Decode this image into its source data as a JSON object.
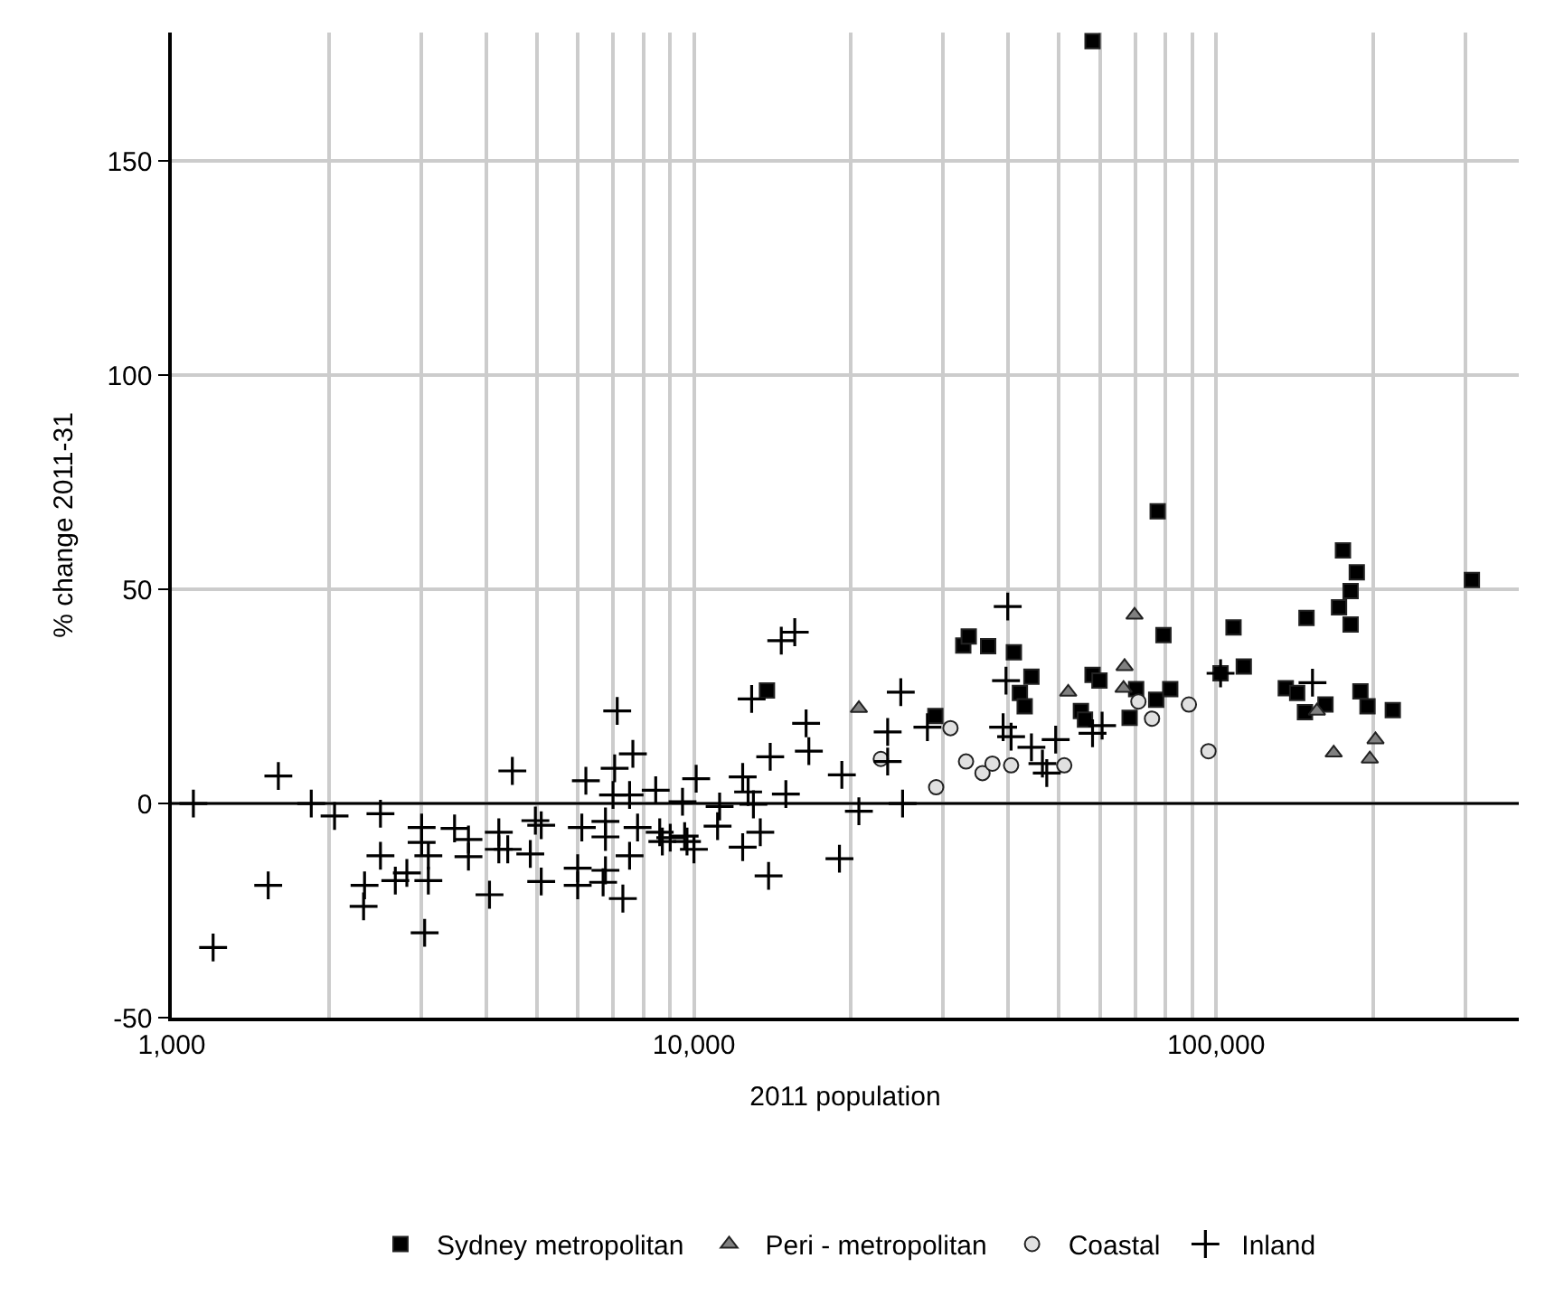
{
  "chart_data": {
    "type": "scatter",
    "xlabel": "2011 population",
    "ylabel": "% change 2011-31",
    "log": "x",
    "grid": true,
    "legend": "bottom",
    "xlim": [
      1000,
      380000
    ],
    "ylim": [
      -50,
      180
    ],
    "xticks": [
      {
        "value": 1000,
        "label": "1,000"
      },
      {
        "value": 2000,
        "label": null
      },
      {
        "value": 3000,
        "label": null
      },
      {
        "value": 4000,
        "label": null
      },
      {
        "value": 5000,
        "label": null
      },
      {
        "value": 6000,
        "label": null
      },
      {
        "value": 7000,
        "label": null
      },
      {
        "value": 8000,
        "label": null
      },
      {
        "value": 9000,
        "label": null
      },
      {
        "value": 10000,
        "label": "10,000"
      },
      {
        "value": 20000,
        "label": null
      },
      {
        "value": 30000,
        "label": null
      },
      {
        "value": 40000,
        "label": null
      },
      {
        "value": 50000,
        "label": null
      },
      {
        "value": 60000,
        "label": null
      },
      {
        "value": 70000,
        "label": null
      },
      {
        "value": 80000,
        "label": null
      },
      {
        "value": 90000,
        "label": null
      },
      {
        "value": 100000,
        "label": "100,000"
      },
      {
        "value": 200000,
        "label": null
      },
      {
        "value": 300000,
        "label": null
      }
    ],
    "yticks": [
      -50,
      0,
      50,
      100,
      150
    ],
    "ref_lines": [
      {
        "axis": "y",
        "value": 0,
        "color": "#000000"
      }
    ],
    "series": [
      {
        "name": "Sydney metropolitan",
        "color": "#000000",
        "marker": "square",
        "x": [
          58000,
          13800,
          29000,
          32800,
          33600,
          36600,
          41000,
          42100,
          43000,
          44300,
          58000,
          59800,
          55100,
          56100,
          68300,
          70300,
          77300,
          76800,
          79300,
          81700,
          102000,
          108000,
          113000,
          136000,
          143000,
          149000,
          148000,
          162000,
          175000,
          172000,
          186000,
          181000,
          181000,
          189000,
          195000,
          218000,
          309000
        ],
        "values": [
          178,
          26.4,
          20.4,
          36.9,
          39,
          36.7,
          35.3,
          25.8,
          22.7,
          29.6,
          30,
          28.7,
          21.6,
          19.6,
          20,
          26.7,
          68.2,
          24.2,
          39.3,
          26.7,
          30.4,
          41.1,
          32,
          26.9,
          25.8,
          43.3,
          21.3,
          23.1,
          59.1,
          45.8,
          54,
          49.6,
          41.8,
          26.2,
          22.7,
          21.8,
          52.2
        ]
      },
      {
        "name": "Peri - metropolitan",
        "color": "#808080",
        "marker": "triangle",
        "x": [
          20700,
          52100,
          66500,
          66800,
          69800,
          156000,
          168000,
          197000,
          202000
        ],
        "values": [
          22.2,
          26,
          26.9,
          32,
          44,
          21.6,
          11.8,
          10.4,
          14.9
        ]
      },
      {
        "name": "Coastal",
        "color": "#e0e0e0",
        "marker": "circle",
        "x": [
          22800,
          29100,
          31000,
          33200,
          35700,
          37300,
          40500,
          51200,
          71000,
          75400,
          88700,
          96700
        ],
        "values": [
          10.4,
          3.8,
          17.6,
          9.8,
          7.1,
          9.3,
          8.9,
          8.9,
          23.8,
          19.8,
          23.1,
          12.2
        ]
      },
      {
        "name": "Inland",
        "color": "#000000",
        "marker": "cross",
        "x": [
          1100,
          1200,
          1530,
          1600,
          1850,
          2050,
          2330,
          2340,
          2510,
          2510,
          2680,
          2820,
          3010,
          3050,
          3100,
          3100,
          3010,
          3480,
          3700,
          3700,
          4060,
          4230,
          4230,
          4490,
          4400,
          4860,
          4970,
          5100,
          5100,
          5990,
          5990,
          6210,
          6100,
          6770,
          6770,
          6770,
          6700,
          7130,
          7050,
          7000,
          7310,
          7530,
          7530,
          7640,
          7800,
          8450,
          8600,
          8700,
          9010,
          9510,
          9600,
          9700,
          10100,
          10000,
          11200,
          11100,
          12400,
          12400,
          12700,
          12900,
          13400,
          13000,
          13900,
          14000,
          14700,
          15600,
          15000,
          16400,
          16600,
          19000,
          19200,
          20700,
          23500,
          23500,
          24900,
          25100,
          28000,
          39900,
          39600,
          39100,
          40500,
          44300,
          46500,
          47400,
          49300,
          58000,
          60500,
          102000,
          153000
        ],
        "values": [
          0,
          -33.6,
          -19.1,
          6.4,
          0,
          -2.9,
          -24,
          -19.1,
          -2.4,
          -12.2,
          -18,
          -16.2,
          -5.6,
          -30.2,
          -18,
          -12.2,
          -9.1,
          -5.8,
          -12.4,
          -8.4,
          -21.3,
          -6.7,
          -10.7,
          7.6,
          -10.7,
          -11.8,
          -4,
          -18.2,
          -5.1,
          -15.1,
          -19.1,
          5.3,
          -5.6,
          -4.2,
          -7.8,
          -15.6,
          -18.4,
          21.6,
          8.2,
          2,
          -22.2,
          -12.2,
          2,
          11.6,
          -5.6,
          3.1,
          -6.7,
          -8.9,
          -8,
          0.4,
          -7.6,
          -8.9,
          5.8,
          -10.7,
          -0.7,
          -5.3,
          6.2,
          -10.2,
          2.7,
          24.4,
          -6.7,
          -0.2,
          -16.9,
          10.9,
          38,
          40,
          2.2,
          18.7,
          12.2,
          -12.9,
          6.7,
          -1.8,
          9.8,
          16.7,
          26,
          0,
          17.8,
          46,
          28.7,
          17.8,
          15.6,
          13.1,
          9.3,
          7.1,
          14.9,
          16.4,
          18.2,
          30.4,
          28.2
        ]
      }
    ]
  }
}
